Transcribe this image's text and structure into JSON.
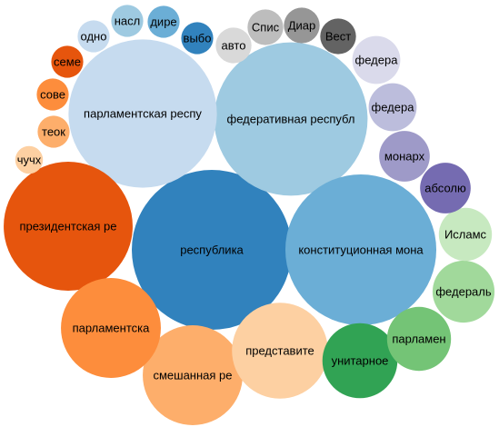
{
  "chart_data": {
    "type": "bubble",
    "title": "",
    "xlabel": "",
    "ylabel": "",
    "legend": "none",
    "bubbles": [
      {
        "label": "республика",
        "value": 100,
        "color": "#3182bd",
        "text_color": "#000000"
      },
      {
        "label": "федеративная республ",
        "value": 92,
        "color": "#9ecae1",
        "text_color": "#000000"
      },
      {
        "label": "конституционная мона",
        "value": 89,
        "color": "#6baed6",
        "text_color": "#000000"
      },
      {
        "label": "парламентская респу",
        "value": 86,
        "color": "#c6dbef",
        "text_color": "#000000"
      },
      {
        "label": "президентская ре",
        "value": 65,
        "color": "#e6550d",
        "text_color": "#000000"
      },
      {
        "label": "смешанная ре",
        "value": 39,
        "color": "#fdae6b",
        "text_color": "#000000"
      },
      {
        "label": "парламентска",
        "value": 39,
        "color": "#fd8d3c",
        "text_color": "#000000"
      },
      {
        "label": "представите",
        "value": 36,
        "color": "#fdd0a2",
        "text_color": "#000000"
      },
      {
        "label": "унитарное",
        "value": 22,
        "color": "#31a354",
        "text_color": "#000000"
      },
      {
        "label": "парламен",
        "value": 16,
        "color": "#74c476",
        "text_color": "#000000"
      },
      {
        "label": "федераль",
        "value": 15,
        "color": "#a1d99b",
        "text_color": "#000000"
      },
      {
        "label": "Исламс",
        "value": 11,
        "color": "#c7e9c0",
        "text_color": "#000000"
      },
      {
        "label": "абсолю",
        "value": 10,
        "color": "#756bb1",
        "text_color": "#000000"
      },
      {
        "label": "монарх",
        "value": 10,
        "color": "#9e9ac8",
        "text_color": "#000000"
      },
      {
        "label": "федера",
        "value": 9,
        "color": "#bcbddc",
        "text_color": "#000000"
      },
      {
        "label": "федера",
        "value": 9,
        "color": "#dadaeb",
        "text_color": "#000000"
      },
      {
        "label": "Вест",
        "value": 5,
        "color": "#636363",
        "text_color": "#000000"
      },
      {
        "label": "Диар",
        "value": 5,
        "color": "#969696",
        "text_color": "#000000"
      },
      {
        "label": "Спис",
        "value": 5,
        "color": "#bdbdbd",
        "text_color": "#000000"
      },
      {
        "label": "авто",
        "value": 5,
        "color": "#d9d9d9",
        "text_color": "#000000"
      },
      {
        "label": "выбо",
        "value": 4,
        "color": "#3182bd",
        "text_color": "#000000"
      },
      {
        "label": "дире",
        "value": 4,
        "color": "#6baed6",
        "text_color": "#000000"
      },
      {
        "label": "насл",
        "value": 4,
        "color": "#9ecae1",
        "text_color": "#000000"
      },
      {
        "label": "одно",
        "value": 4,
        "color": "#c6dbef",
        "text_color": "#000000"
      },
      {
        "label": "семе",
        "value": 4,
        "color": "#e6550d",
        "text_color": "#000000"
      },
      {
        "label": "сове",
        "value": 4,
        "color": "#fd8d3c",
        "text_color": "#000000"
      },
      {
        "label": "теок",
        "value": 4,
        "color": "#fdae6b",
        "text_color": "#000000"
      },
      {
        "label": "чучх",
        "value": 3,
        "color": "#fdd0a2",
        "text_color": "#000000"
      }
    ]
  }
}
